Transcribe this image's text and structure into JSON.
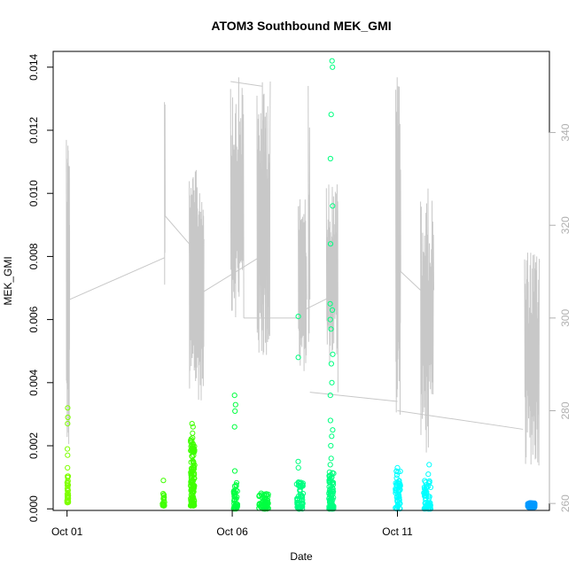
{
  "chart_data": {
    "type": "scatter",
    "title": "ATOM3 Southbound MEK_GMI",
    "xlabel": "Date",
    "ylabel": "MEK_GMI",
    "x_ticks": [
      {
        "label": "Oct 01",
        "day": 1
      },
      {
        "label": "Oct 06",
        "day": 6
      },
      {
        "label": "Oct 11",
        "day": 11
      }
    ],
    "xlim": [
      0.58,
      15.6
    ],
    "ylim": [
      -5e-05,
      0.0145
    ],
    "y_ticks": [
      0.0,
      0.002,
      0.004,
      0.006,
      0.008,
      0.01,
      0.012,
      0.014
    ],
    "y_tick_labels": [
      "0.000",
      "0.002",
      "0.004",
      "0.006",
      "0.008",
      "0.010",
      "0.012",
      "0.014"
    ],
    "y2lim": [
      258.5,
      357.5
    ],
    "y2_ticks": [
      260,
      280,
      300,
      320,
      340
    ],
    "y2_tick_labels": [
      "260",
      "280",
      "300",
      "320",
      "340"
    ],
    "grid": false,
    "series": [
      {
        "color": "#7fff00",
        "clusters": [
          {
            "day": 1.02,
            "width": 0.04,
            "count": 40,
            "base": [
              0.0002,
              0.0011
            ],
            "extra": [
              0.0013,
              0.0017,
              0.0019,
              0.0027,
              0.0029,
              0.0032
            ]
          }
        ]
      },
      {
        "color": "#3fff00",
        "clusters": [
          {
            "day": 3.92,
            "width": 0.06,
            "count": 22,
            "base": [
              0.0001,
              0.0005
            ],
            "extra": [
              0.0009
            ]
          },
          {
            "day": 4.8,
            "width": 0.12,
            "count": 140,
            "base": [
              0.0001,
              0.0023
            ],
            "extra": [
              0.0024,
              0.0026,
              0.0027
            ]
          }
        ]
      },
      {
        "color": "#00ff40",
        "clusters": [
          {
            "day": 6.1,
            "width": 0.12,
            "count": 45,
            "base": [
              0.0,
              0.0009
            ],
            "extra": [
              0.0012,
              0.0026,
              0.0031,
              0.0033,
              0.0036
            ]
          },
          {
            "day": 6.95,
            "width": 0.3,
            "count": 60,
            "base": [
              0.0,
              0.0005
            ],
            "extra": []
          }
        ]
      },
      {
        "color": "#00ff80",
        "clusters": [
          {
            "day": 8.05,
            "width": 0.2,
            "count": 70,
            "base": [
              0.0,
              0.0009
            ],
            "extra": [
              0.0013,
              0.0015,
              0.0048,
              0.0061
            ]
          },
          {
            "day": 9.0,
            "width": 0.14,
            "count": 90,
            "base": [
              0.0,
              0.0012
            ],
            "extra": [
              0.0014,
              0.0016,
              0.002,
              0.0023,
              0.0025,
              0.0028,
              0.0036,
              0.004,
              0.0046,
              0.0049,
              0.0057,
              0.006,
              0.0063,
              0.0065,
              0.0084,
              0.0096,
              0.0111,
              0.0125,
              0.014,
              0.0142
            ]
          }
        ]
      },
      {
        "color": "#00ffff",
        "clusters": [
          {
            "day": 11.02,
            "width": 0.16,
            "count": 60,
            "base": [
              0.0,
              0.0012
            ],
            "extra": [
              0.0013
            ]
          },
          {
            "day": 11.9,
            "width": 0.22,
            "count": 70,
            "base": [
              0.0,
              0.0009
            ],
            "extra": [
              0.0011,
              0.0014
            ]
          }
        ]
      },
      {
        "color": "#0099ff",
        "clusters": [
          {
            "day": 15.05,
            "width": 0.22,
            "count": 60,
            "base": [
              5e-05,
              0.0002
            ],
            "extra": []
          }
        ]
      }
    ],
    "secondary_line": {
      "color": "#c8c8c8",
      "segments": [
        {
          "x0": 0.98,
          "x1": 1.08,
          "lo": 270,
          "hi": 342,
          "n": 30,
          "end": 304
        },
        {
          "x0": 3.95,
          "x1": 3.97,
          "lo": 300,
          "hi": 349,
          "n": 6,
          "end": 322
        },
        {
          "x0": 4.7,
          "x1": 5.15,
          "lo": 282,
          "hi": 332,
          "n": 70,
          "end": 317
        },
        {
          "x0": 5.95,
          "x1": 6.35,
          "lo": 300,
          "hi": 352,
          "n": 40,
          "end": 300
        },
        {
          "x0": 6.75,
          "x1": 7.15,
          "lo": 290,
          "hi": 351,
          "n": 50,
          "end": 351
        },
        {
          "x0": 8.0,
          "x1": 8.25,
          "lo": 288,
          "hi": 326,
          "n": 40,
          "end": 304
        },
        {
          "x0": 8.3,
          "x1": 8.35,
          "lo": 275,
          "hi": 354,
          "n": 6,
          "end": 304
        },
        {
          "x0": 8.85,
          "x1": 9.2,
          "lo": 290,
          "hi": 330,
          "n": 40,
          "end": 284
        },
        {
          "x0": 10.95,
          "x1": 11.1,
          "lo": 278,
          "hi": 353,
          "n": 30,
          "end": 310
        },
        {
          "x0": 11.7,
          "x1": 12.1,
          "lo": 270,
          "hi": 328,
          "n": 40,
          "end": 306
        },
        {
          "x0": 14.85,
          "x1": 15.3,
          "lo": 268,
          "hi": 315,
          "n": 50,
          "end": 312
        }
      ],
      "connectors": [
        [
          1.08,
          304,
          3.95,
          313
        ],
        [
          3.97,
          322,
          4.7,
          316
        ],
        [
          4.7,
          316,
          4.75,
          304
        ],
        [
          4.75,
          304,
          6.8,
          313
        ],
        [
          5.95,
          351,
          6.9,
          350
        ],
        [
          6.35,
          300,
          8.0,
          300
        ],
        [
          8.25,
          302,
          9.1,
          305
        ],
        [
          8.35,
          284,
          11.0,
          282
        ],
        [
          11.0,
          280,
          14.8,
          276
        ],
        [
          11.1,
          310,
          11.7,
          306
        ]
      ]
    }
  }
}
